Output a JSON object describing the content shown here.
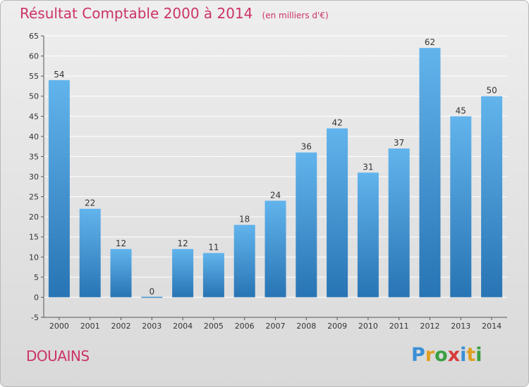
{
  "chart_data": {
    "type": "bar",
    "title": "Résultat Comptable 2000 à 2014",
    "subtitle": "(en milliers d'€)",
    "categories": [
      "2000",
      "2001",
      "2002",
      "2003",
      "2004",
      "2005",
      "2006",
      "2007",
      "2008",
      "2009",
      "2010",
      "2011",
      "2012",
      "2013",
      "2014"
    ],
    "values": [
      54,
      22,
      12,
      0,
      12,
      11,
      18,
      24,
      36,
      42,
      31,
      37,
      62,
      45,
      50
    ],
    "data_labels": [
      "54",
      "22",
      "12",
      "0",
      "12",
      "11",
      "18",
      "24",
      "36",
      "42",
      "31",
      "37",
      "62",
      "45",
      "50"
    ],
    "ylim": [
      -5,
      65
    ],
    "yticks": [
      -5,
      0,
      5,
      10,
      15,
      20,
      25,
      30,
      35,
      40,
      45,
      50,
      55,
      60,
      65
    ],
    "grid": true,
    "bar_color": "#3b8fd0",
    "bar_color_light": "#62b4ec",
    "bar_color_dark": "#2874b4"
  },
  "footer": {
    "place_name": "DOUAINS",
    "logo_text": "Proxiti"
  },
  "colors": {
    "title": "#cc3366",
    "axis_text": "#333333",
    "grid": "#ffffff"
  },
  "logo_letter_colors": [
    "#3a8fd6",
    "#e0a020",
    "#3aa040",
    "#d83a3a",
    "#3a8fd6",
    "#e0a020",
    "#3aa040"
  ]
}
